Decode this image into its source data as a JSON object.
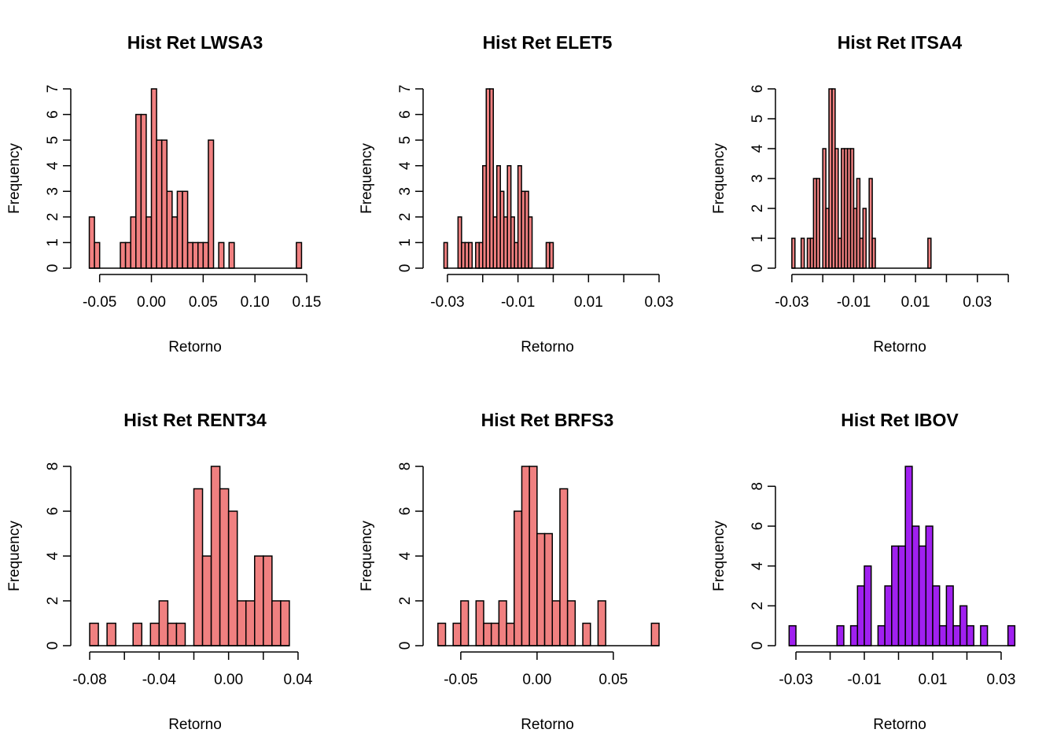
{
  "colors": {
    "default_bar": "#F08080",
    "bar_stroke": "#000000",
    "axis": "#000000",
    "text": "#000000"
  },
  "chart_data": [
    {
      "type": "bar",
      "title": "Hist Ret LWSA3",
      "xlabel": "Retorno",
      "ylabel": "Frequency",
      "fill": "#F08080",
      "bin_width": 0.005,
      "bin_start": -0.06,
      "counts": [
        2,
        1,
        0,
        0,
        0,
        0,
        1,
        1,
        2,
        6,
        6,
        2,
        7,
        5,
        5,
        3,
        2,
        3,
        3,
        1,
        1,
        1,
        1,
        5,
        0,
        1,
        0,
        1,
        0,
        0,
        0,
        0,
        0,
        0,
        0,
        0,
        0,
        0,
        0,
        0,
        1
      ],
      "xlim": [
        -0.068,
        0.15
      ],
      "xticks": [
        -0.05,
        0.0,
        0.05,
        0.1,
        0.15
      ],
      "xtick_labels": [
        "-0.05",
        "0.00",
        "0.05",
        "0.10",
        "0.15"
      ],
      "ylim": [
        0,
        7
      ],
      "yticks": [
        0,
        1,
        2,
        3,
        4,
        5,
        6,
        7
      ],
      "ytick_labels": [
        "0",
        "1",
        "2",
        "3",
        "4",
        "5",
        "6",
        "7"
      ]
    },
    {
      "type": "bar",
      "title": "Hist Ret ELET5",
      "xlabel": "Retorno",
      "ylabel": "Frequency",
      "fill": "#F08080",
      "bin_width": 0.001,
      "bin_start": -0.031,
      "counts": [
        1,
        0,
        0,
        0,
        2,
        1,
        1,
        1,
        0,
        1,
        1,
        4,
        7,
        7,
        2,
        4,
        3,
        2,
        4,
        2,
        1,
        4,
        3,
        3,
        2,
        0,
        0,
        0,
        0,
        1,
        1
      ],
      "xlim": [
        -0.034,
        0.03
      ],
      "xticks": [
        -0.03,
        -0.02,
        -0.01,
        0.0,
        0.01,
        0.02,
        0.03
      ],
      "xtick_labels": [
        "-0.03",
        "",
        "-0.01",
        "",
        "0.01",
        "",
        "0.03"
      ],
      "ylim": [
        0,
        7
      ],
      "yticks": [
        0,
        1,
        2,
        3,
        4,
        5,
        6,
        7
      ],
      "ytick_labels": [
        "0",
        "1",
        "2",
        "3",
        "4",
        "5",
        "6",
        "7"
      ]
    },
    {
      "type": "bar",
      "title": "Hist Ret ITSA4",
      "xlabel": "Retorno",
      "ylabel": "Frequency",
      "fill": "#F08080",
      "bin_width": 0.001,
      "bin_start": -0.03,
      "counts": [
        1,
        0,
        0,
        1,
        0,
        1,
        1,
        3,
        3,
        0,
        4,
        2,
        6,
        6,
        4,
        1,
        4,
        4,
        4,
        4,
        2,
        3,
        1,
        2,
        0,
        3,
        1,
        0,
        0,
        0,
        0,
        0,
        0,
        0,
        0,
        0,
        0,
        0,
        0,
        0,
        0,
        0,
        0,
        0,
        1
      ],
      "xlim": [
        -0.032,
        0.041
      ],
      "xticks": [
        -0.03,
        -0.02,
        -0.01,
        0.0,
        0.01,
        0.02,
        0.03,
        0.04
      ],
      "xtick_labels": [
        "-0.03",
        "",
        "-0.01",
        "",
        "0.01",
        "",
        "0.03",
        ""
      ],
      "ylim": [
        0,
        6
      ],
      "yticks": [
        0,
        1,
        2,
        3,
        4,
        5,
        6
      ],
      "ytick_labels": [
        "0",
        "1",
        "2",
        "3",
        "4",
        "5",
        "6"
      ]
    },
    {
      "type": "bar",
      "title": "Hist Ret RENT34",
      "xlabel": "Retorno",
      "ylabel": "Frequency",
      "fill": "#F08080",
      "bin_width": 0.005,
      "bin_start": -0.08,
      "counts": [
        1,
        0,
        1,
        0,
        0,
        1,
        0,
        1,
        2,
        1,
        1,
        0,
        7,
        4,
        8,
        7,
        6,
        2,
        2,
        4,
        4,
        2,
        2
      ],
      "xlim": [
        -0.085,
        0.045
      ],
      "xticks": [
        -0.08,
        -0.06,
        -0.04,
        -0.02,
        0.0,
        0.02,
        0.04
      ],
      "xtick_labels": [
        "-0.08",
        "",
        "-0.04",
        "",
        "0.00",
        "",
        "0.04"
      ],
      "ylim": [
        0,
        8
      ],
      "yticks": [
        0,
        2,
        4,
        6,
        8
      ],
      "ytick_labels": [
        "0",
        "2",
        "4",
        "6",
        "8"
      ]
    },
    {
      "type": "bar",
      "title": "Hist Ret BRFS3",
      "xlabel": "Retorno",
      "ylabel": "Frequency",
      "fill": "#F08080",
      "bin_width": 0.005,
      "bin_start": -0.065,
      "counts": [
        1,
        0,
        1,
        2,
        0,
        2,
        1,
        1,
        2,
        1,
        6,
        8,
        8,
        5,
        5,
        2,
        7,
        2,
        0,
        1,
        0,
        2,
        0,
        0,
        0,
        0,
        0,
        0,
        1
      ],
      "xlim": [
        -0.068,
        0.08
      ],
      "xticks": [
        -0.05,
        0.0,
        0.05
      ],
      "xtick_labels": [
        "-0.05",
        "0.00",
        "0.05"
      ],
      "ylim": [
        0,
        8
      ],
      "yticks": [
        0,
        2,
        4,
        6,
        8
      ],
      "ytick_labels": [
        "0",
        "2",
        "4",
        "6",
        "8"
      ]
    },
    {
      "type": "bar",
      "title": "Hist Ret IBOV",
      "xlabel": "Retorno",
      "ylabel": "Frequency",
      "fill": "#A020F0",
      "bin_width": 0.002,
      "bin_start": -0.032,
      "counts": [
        1,
        0,
        0,
        0,
        0,
        0,
        0,
        1,
        0,
        1,
        3,
        4,
        0,
        1,
        3,
        5,
        5,
        9,
        6,
        5,
        6,
        3,
        1,
        3,
        1,
        2,
        1,
        0,
        1,
        0,
        0,
        0,
        1
      ],
      "xlim": [
        -0.033,
        0.033
      ],
      "xticks": [
        -0.03,
        -0.02,
        -0.01,
        0.0,
        0.01,
        0.02,
        0.03
      ],
      "xtick_labels": [
        "-0.03",
        "",
        "-0.01",
        "",
        "0.01",
        "",
        "0.03"
      ],
      "ylim": [
        0,
        9
      ],
      "yticks": [
        0,
        2,
        4,
        6,
        8
      ],
      "ytick_labels": [
        "0",
        "2",
        "4",
        "6",
        "8"
      ]
    }
  ]
}
